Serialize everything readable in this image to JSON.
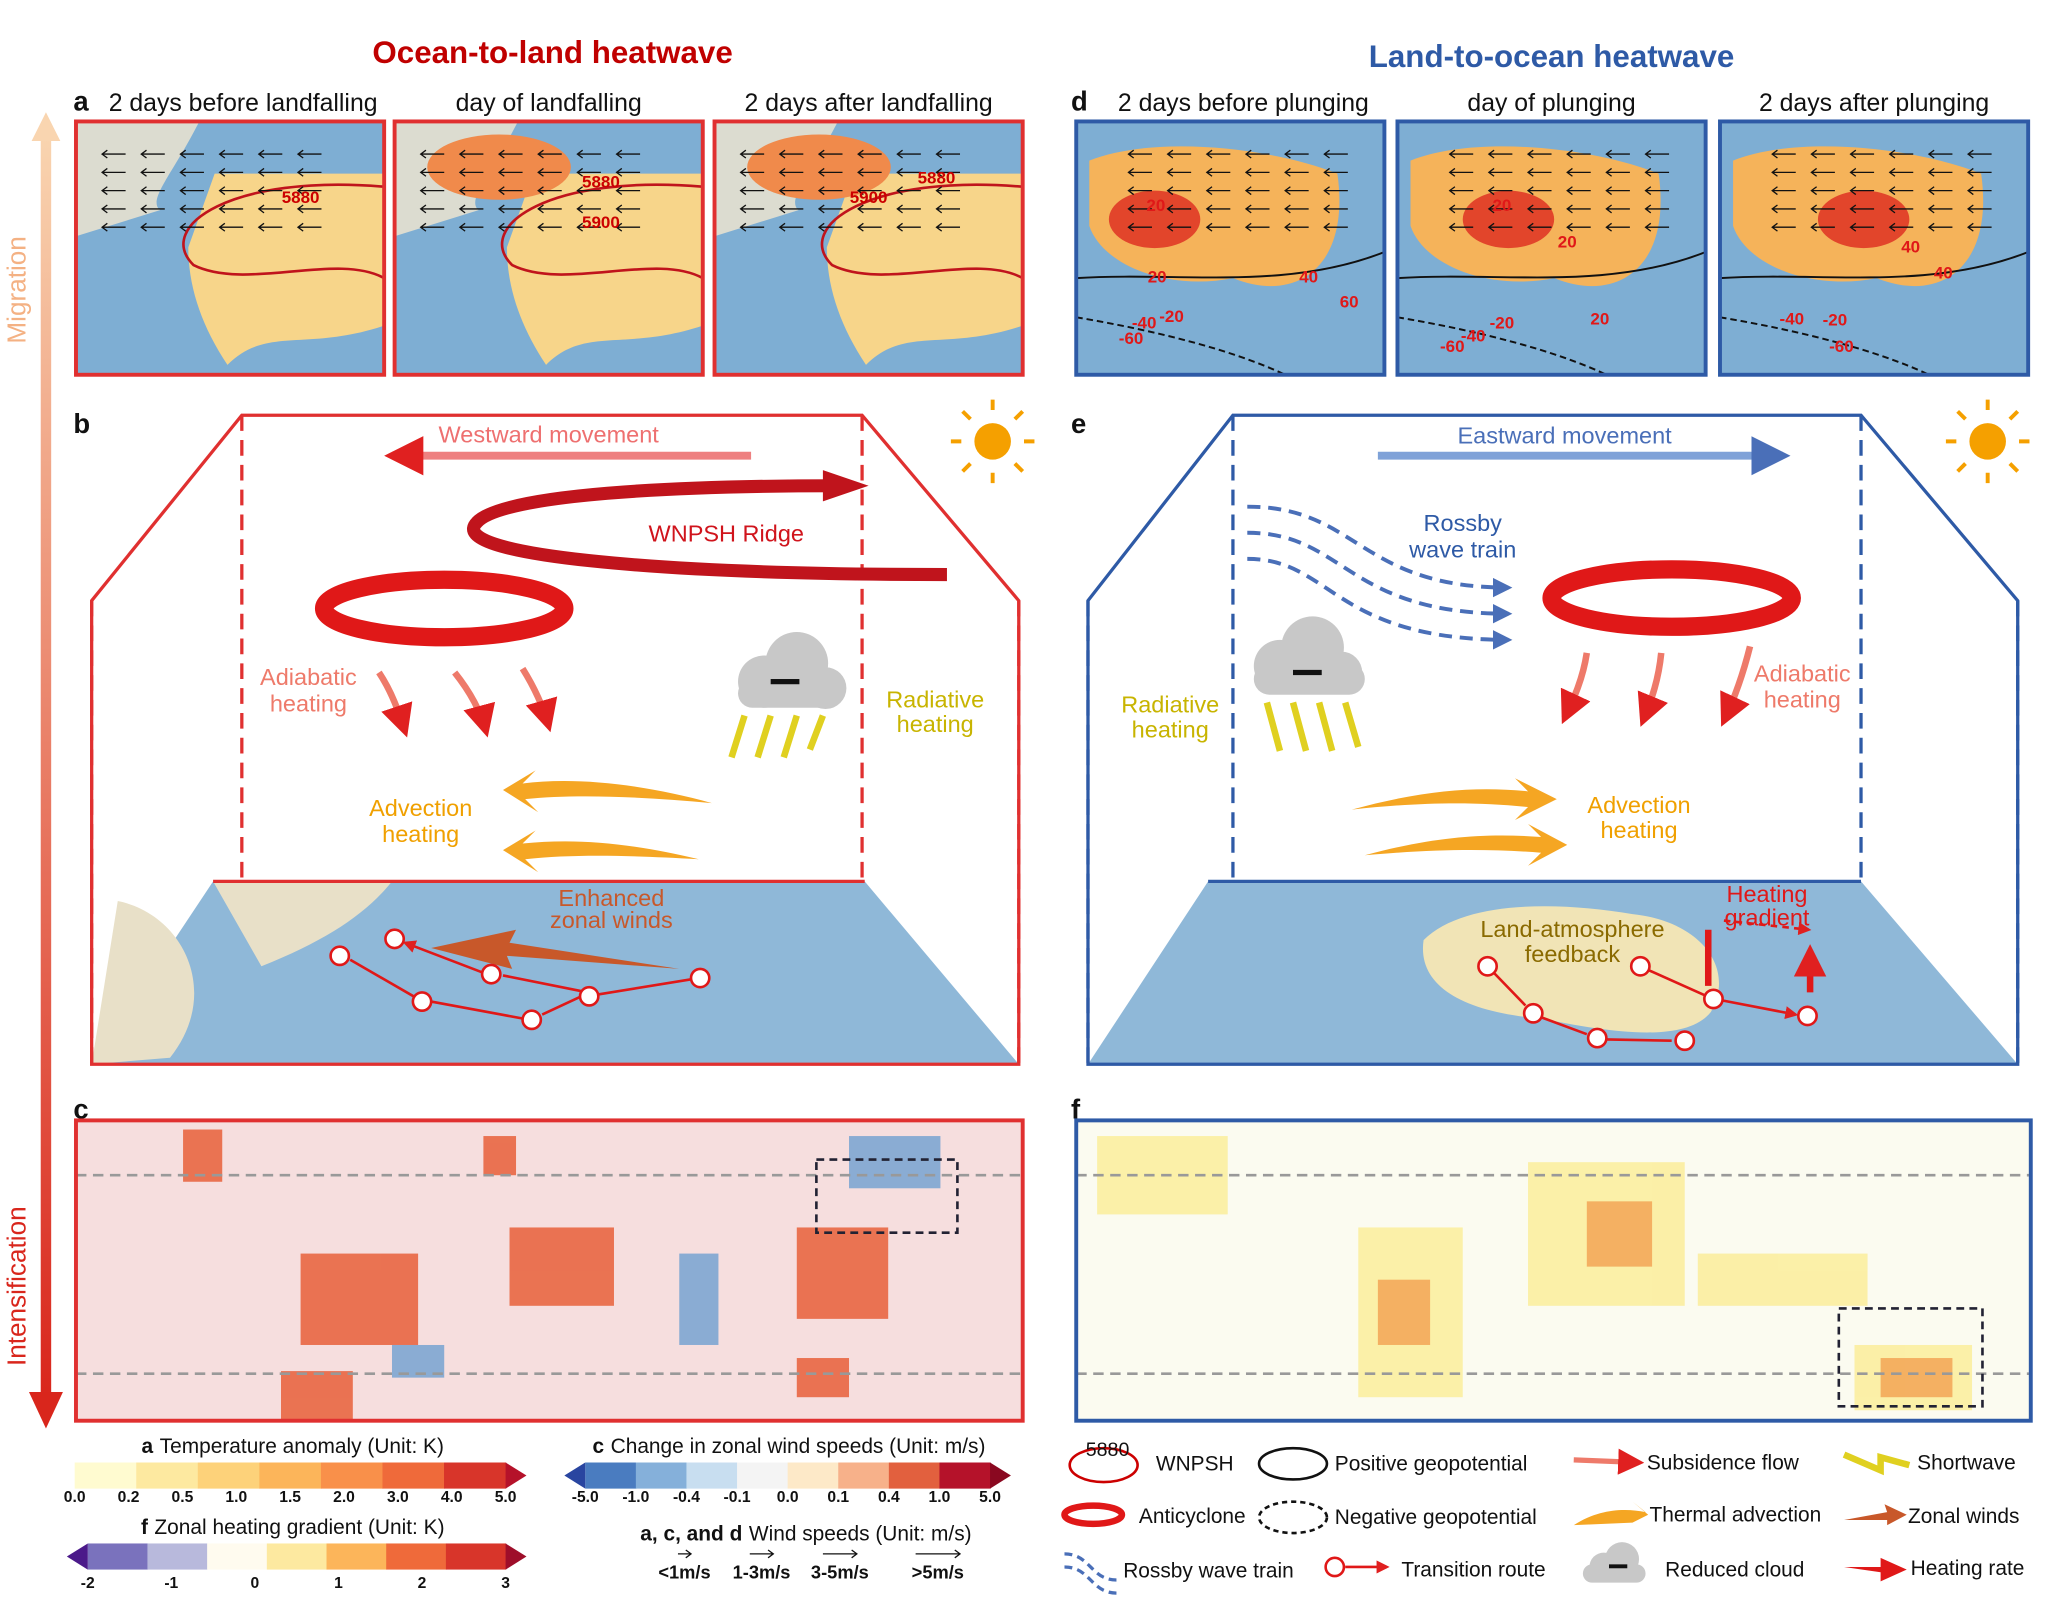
{
  "left": {
    "title": "Ocean-to-land heatwave",
    "a": {
      "label": "a",
      "frames": [
        {
          "title": "2 days before landfalling",
          "contours": [
            "5880"
          ]
        },
        {
          "title": "day of landfalling",
          "contours": [
            "5880",
            "5900"
          ]
        },
        {
          "title": "2 days after landfalling",
          "contours": [
            "5880",
            "5900"
          ]
        }
      ]
    },
    "b": {
      "label": "b",
      "movement": "Westward movement",
      "ridge": "WNPSH Ridge",
      "adiabatic": [
        "Adiabatic",
        "heating"
      ],
      "radiative": [
        "Radiative",
        "heating"
      ],
      "advection": [
        "Advection",
        "heating"
      ],
      "zonal": [
        "Enhanced",
        "zonal winds"
      ]
    },
    "c": {
      "label": "c"
    }
  },
  "right": {
    "title": "Land-to-ocean heatwave",
    "d": {
      "label": "d",
      "frames": [
        {
          "title": "2 days before plunging",
          "contours": [
            "20",
            "20",
            "40",
            "60",
            "-20",
            "-40",
            "-60"
          ]
        },
        {
          "title": "day of plunging",
          "contours": [
            "20",
            "20",
            "20",
            "-20",
            "-40",
            "-60"
          ]
        },
        {
          "title": "2 days after plunging",
          "contours": [
            "40",
            "40",
            "-40",
            "-20",
            "-60"
          ]
        }
      ]
    },
    "e": {
      "label": "e",
      "movement": "Eastward movement",
      "rossby": [
        "Rossby",
        "wave train"
      ],
      "radiative": [
        "Radiative",
        "heating"
      ],
      "adiabatic": [
        "Adiabatic",
        "heating"
      ],
      "advection": [
        "Advection",
        "heating"
      ],
      "gradient": [
        "Heating",
        "gradient"
      ],
      "feedback": [
        "Land-atmosphere",
        "feedback"
      ]
    },
    "f": {
      "label": "f"
    }
  },
  "axis": {
    "top": "Migration",
    "bottom": "Intensification"
  },
  "colorbars": [
    {
      "key": "a",
      "title": "Temperature anomaly (Unit: K)",
      "ticks": [
        "0.0",
        "0.2",
        "0.5",
        "1.0",
        "1.5",
        "2.0",
        "3.0",
        "4.0",
        "5.0"
      ]
    },
    {
      "key": "f",
      "title": "Zonal heating gradient (Unit: K)",
      "ticks": [
        "-2",
        "-1",
        "0",
        "1",
        "2",
        "3"
      ]
    },
    {
      "key": "c",
      "title": "Change in zonal wind speeds (Unit: m/s)",
      "ticks": [
        "-5.0",
        "-1.0",
        "-0.4",
        "-0.1",
        "0.0",
        "0.1",
        "0.4",
        "1.0",
        "5.0"
      ]
    }
  ],
  "wind_scale": {
    "key": "a, c, and d",
    "title": "Wind speeds (Unit: m/s)",
    "classes": [
      "<1m/s",
      "1-3m/s",
      "3-5m/s",
      ">5m/s"
    ]
  },
  "legend": {
    "contour_sample": "5880",
    "items": [
      "WNPSH",
      "Anticyclone",
      "Rossby wave train",
      "Positive geopotential",
      "Negative geopotential",
      "Transition route",
      "Subsidence flow",
      "Thermal advection",
      "Reduced cloud",
      "Shortwave",
      "Zonal winds",
      "Heating rate"
    ]
  }
}
